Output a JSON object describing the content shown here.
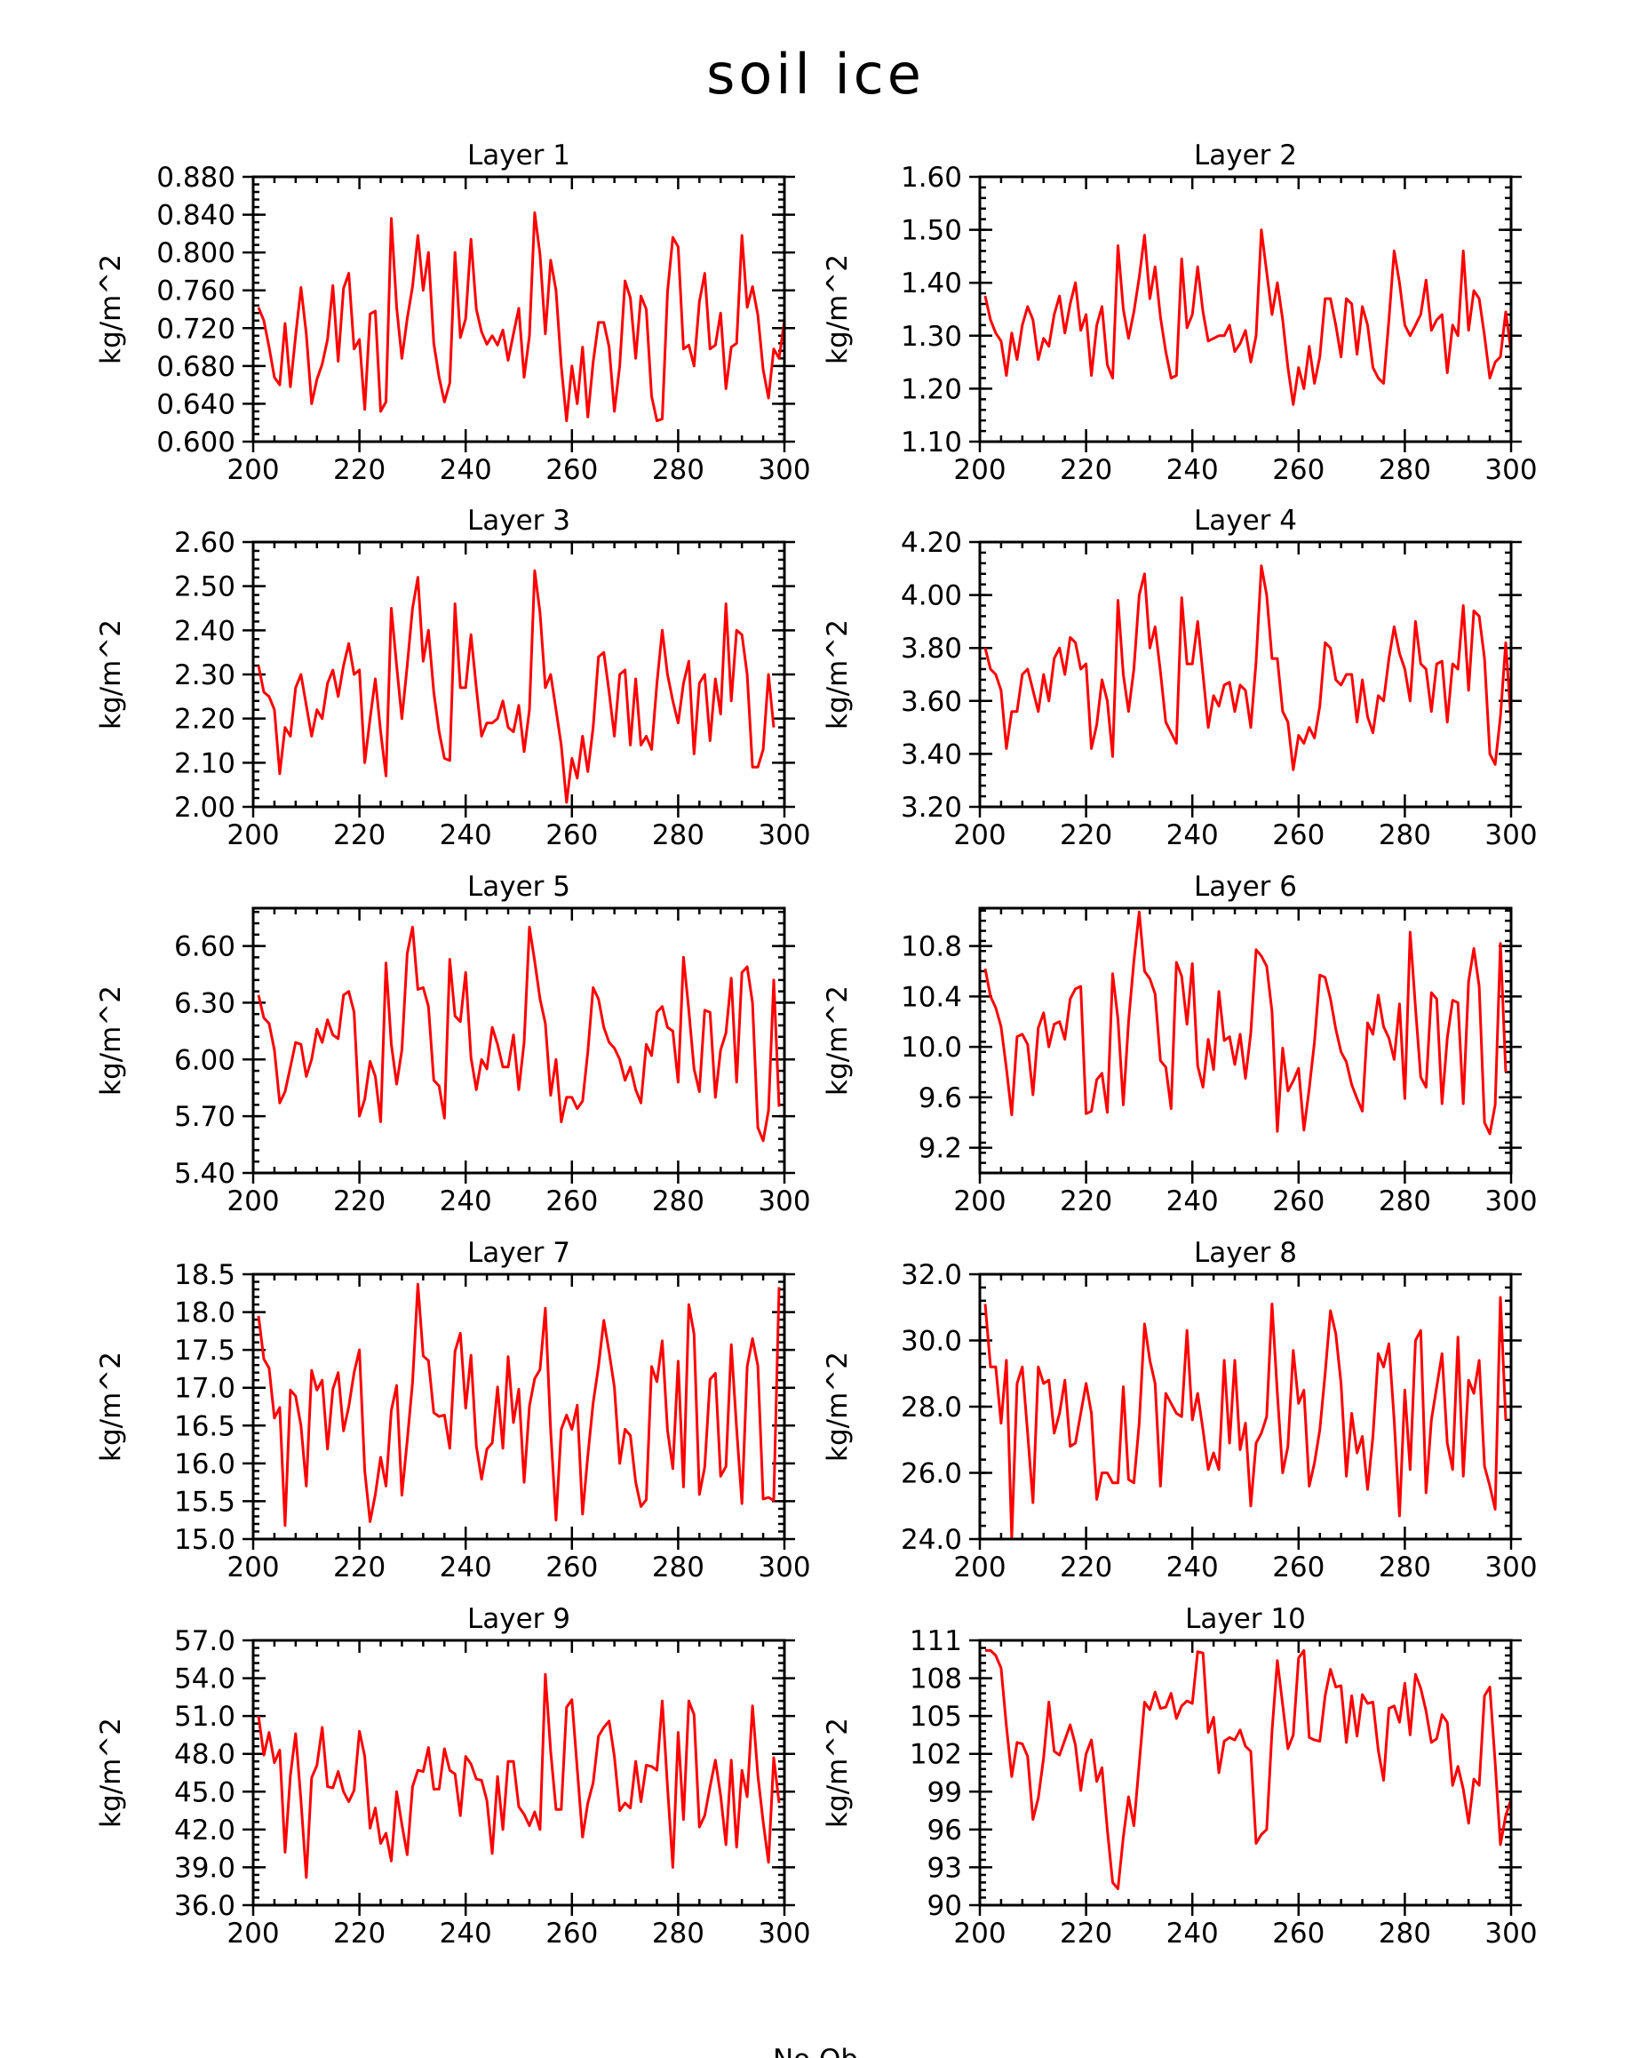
{
  "figure": {
    "title": "soil ice",
    "bottom_label": "No Ob",
    "line_color": "#ff0000"
  },
  "chart_data": [
    {
      "type": "line",
      "title": "Layer 1",
      "xlabel": "",
      "ylabel": "kg/m^2",
      "xlim": [
        200,
        300
      ],
      "ylim": [
        0.6,
        0.88
      ],
      "xticks": [
        "200",
        "220",
        "240",
        "260",
        "280",
        "300"
      ],
      "yticks": [
        "0.600",
        "0.640",
        "0.680",
        "0.720",
        "0.760",
        "0.800",
        "0.840",
        "0.880"
      ],
      "x_start": 201,
      "values": [
        0.742,
        0.728,
        0.7,
        0.668,
        0.66,
        0.725,
        0.658,
        0.712,
        0.763,
        0.714,
        0.64,
        0.666,
        0.682,
        0.708,
        0.765,
        0.685,
        0.762,
        0.778,
        0.698,
        0.708,
        0.634,
        0.735,
        0.738,
        0.632,
        0.642,
        0.836,
        0.742,
        0.688,
        0.73,
        0.764,
        0.818,
        0.76,
        0.8,
        0.704,
        0.668,
        0.642,
        0.662,
        0.8,
        0.71,
        0.73,
        0.814,
        0.74,
        0.716,
        0.703,
        0.712,
        0.702,
        0.718,
        0.686,
        0.714,
        0.741,
        0.668,
        0.712,
        0.842,
        0.798,
        0.714,
        0.792,
        0.76,
        0.68,
        0.622,
        0.68,
        0.64,
        0.7,
        0.626,
        0.684,
        0.726,
        0.726,
        0.7,
        0.632,
        0.68,
        0.77,
        0.752,
        0.688,
        0.754,
        0.74,
        0.648,
        0.622,
        0.624,
        0.758,
        0.816,
        0.806,
        0.698,
        0.702,
        0.68,
        0.748,
        0.778,
        0.698,
        0.702,
        0.736,
        0.656,
        0.7,
        0.704,
        0.818,
        0.742,
        0.764,
        0.734,
        0.676,
        0.646,
        0.698,
        0.688,
        0.728,
        0.668
      ]
    },
    {
      "type": "line",
      "title": "Layer 2",
      "xlabel": "",
      "ylabel": "kg/m^2",
      "xlim": [
        200,
        300
      ],
      "ylim": [
        1.1,
        1.6
      ],
      "xticks": [
        "200",
        "220",
        "240",
        "260",
        "280",
        "300"
      ],
      "yticks": [
        "1.10",
        "1.20",
        "1.30",
        "1.40",
        "1.50",
        "1.60"
      ],
      "x_start": 201,
      "values": [
        1.375,
        1.33,
        1.305,
        1.29,
        1.225,
        1.305,
        1.255,
        1.32,
        1.355,
        1.33,
        1.255,
        1.295,
        1.28,
        1.34,
        1.375,
        1.305,
        1.36,
        1.4,
        1.31,
        1.34,
        1.225,
        1.32,
        1.355,
        1.245,
        1.22,
        1.47,
        1.35,
        1.295,
        1.345,
        1.41,
        1.49,
        1.37,
        1.43,
        1.335,
        1.27,
        1.22,
        1.225,
        1.445,
        1.315,
        1.34,
        1.43,
        1.345,
        1.29,
        1.295,
        1.3,
        1.3,
        1.32,
        1.27,
        1.285,
        1.31,
        1.25,
        1.3,
        1.5,
        1.42,
        1.34,
        1.4,
        1.33,
        1.24,
        1.17,
        1.24,
        1.2,
        1.28,
        1.21,
        1.26,
        1.37,
        1.37,
        1.32,
        1.26,
        1.37,
        1.36,
        1.265,
        1.355,
        1.32,
        1.24,
        1.22,
        1.21,
        1.33,
        1.46,
        1.4,
        1.32,
        1.3,
        1.32,
        1.34,
        1.405,
        1.31,
        1.33,
        1.34,
        1.23,
        1.32,
        1.3,
        1.46,
        1.31,
        1.385,
        1.37,
        1.3,
        1.22,
        1.25,
        1.26,
        1.345,
        1.27,
        1.32
      ]
    },
    {
      "type": "line",
      "title": "Layer 3",
      "xlabel": "",
      "ylabel": "kg/m^2",
      "xlim": [
        200,
        300
      ],
      "ylim": [
        2.0,
        2.6
      ],
      "xticks": [
        "200",
        "220",
        "240",
        "260",
        "280",
        "300"
      ],
      "yticks": [
        "2.00",
        "2.10",
        "2.20",
        "2.30",
        "2.40",
        "2.50",
        "2.60"
      ],
      "x_start": 201,
      "values": [
        2.32,
        2.26,
        2.25,
        2.22,
        2.075,
        2.18,
        2.16,
        2.27,
        2.3,
        2.23,
        2.16,
        2.22,
        2.2,
        2.28,
        2.31,
        2.25,
        2.32,
        2.37,
        2.3,
        2.31,
        2.1,
        2.2,
        2.29,
        2.17,
        2.07,
        2.45,
        2.32,
        2.2,
        2.32,
        2.45,
        2.52,
        2.33,
        2.4,
        2.26,
        2.17,
        2.11,
        2.105,
        2.46,
        2.27,
        2.27,
        2.39,
        2.27,
        2.16,
        2.19,
        2.19,
        2.2,
        2.24,
        2.18,
        2.17,
        2.23,
        2.125,
        2.22,
        2.535,
        2.44,
        2.27,
        2.3,
        2.22,
        2.14,
        2.01,
        2.11,
        2.065,
        2.16,
        2.08,
        2.18,
        2.34,
        2.35,
        2.26,
        2.16,
        2.3,
        2.31,
        2.14,
        2.29,
        2.14,
        2.16,
        2.13,
        2.28,
        2.4,
        2.3,
        2.24,
        2.19,
        2.28,
        2.33,
        2.12,
        2.28,
        2.3,
        2.15,
        2.29,
        2.21,
        2.46,
        2.24,
        2.4,
        2.39,
        2.3,
        2.09,
        2.09,
        2.13,
        2.3,
        2.18
      ]
    },
    {
      "type": "line",
      "title": "Layer 4",
      "xlabel": "",
      "ylabel": "kg/m^2",
      "xlim": [
        200,
        300
      ],
      "ylim": [
        3.2,
        4.2
      ],
      "xticks": [
        "200",
        "220",
        "240",
        "260",
        "280",
        "300"
      ],
      "yticks": [
        "3.20",
        "3.40",
        "3.60",
        "3.80",
        "4.00",
        "4.20"
      ],
      "x_start": 201,
      "values": [
        3.8,
        3.72,
        3.7,
        3.64,
        3.42,
        3.56,
        3.56,
        3.7,
        3.72,
        3.64,
        3.56,
        3.7,
        3.6,
        3.76,
        3.8,
        3.7,
        3.84,
        3.82,
        3.72,
        3.74,
        3.42,
        3.51,
        3.68,
        3.6,
        3.39,
        3.98,
        3.7,
        3.56,
        3.72,
        4.0,
        4.08,
        3.8,
        3.88,
        3.71,
        3.52,
        3.48,
        3.44,
        3.99,
        3.74,
        3.74,
        3.9,
        3.7,
        3.5,
        3.62,
        3.58,
        3.66,
        3.67,
        3.56,
        3.66,
        3.64,
        3.5,
        3.75,
        4.11,
        4.0,
        3.76,
        3.76,
        3.56,
        3.52,
        3.34,
        3.47,
        3.44,
        3.5,
        3.46,
        3.58,
        3.82,
        3.8,
        3.68,
        3.66,
        3.7,
        3.7,
        3.52,
        3.68,
        3.54,
        3.48,
        3.62,
        3.6,
        3.76,
        3.88,
        3.78,
        3.72,
        3.6,
        3.9,
        3.74,
        3.72,
        3.56,
        3.74,
        3.75,
        3.52,
        3.74,
        3.72,
        3.96,
        3.64,
        3.94,
        3.92,
        3.76,
        3.4,
        3.36,
        3.54,
        3.82,
        3.52
      ]
    },
    {
      "type": "line",
      "title": "Layer 5",
      "xlabel": "",
      "ylabel": "kg/m^2",
      "xlim": [
        200,
        300
      ],
      "ylim": [
        5.4,
        6.8
      ],
      "xticks": [
        "200",
        "220",
        "240",
        "260",
        "280",
        "300"
      ],
      "yticks": [
        "5.40",
        "5.70",
        "6.00",
        "6.30",
        "6.60"
      ],
      "x_start": 201,
      "values": [
        6.34,
        6.22,
        6.19,
        6.05,
        5.77,
        5.83,
        5.96,
        6.09,
        6.08,
        5.91,
        6.0,
        6.16,
        6.09,
        6.21,
        6.13,
        6.11,
        6.34,
        6.36,
        6.25,
        5.7,
        5.79,
        5.99,
        5.91,
        5.67,
        6.51,
        6.08,
        5.87,
        6.05,
        6.56,
        6.7,
        6.37,
        6.38,
        6.28,
        5.89,
        5.86,
        5.69,
        6.53,
        6.23,
        6.2,
        6.46,
        6.01,
        5.84,
        6.0,
        5.95,
        6.17,
        6.08,
        5.96,
        5.96,
        6.13,
        5.84,
        6.09,
        6.7,
        6.52,
        6.32,
        6.19,
        5.81,
        6.0,
        5.67,
        5.8,
        5.8,
        5.74,
        5.78,
        6.04,
        6.38,
        6.32,
        6.17,
        6.09,
        6.06,
        6.0,
        5.89,
        5.96,
        5.84,
        5.77,
        6.08,
        6.02,
        6.25,
        6.28,
        6.17,
        6.15,
        5.88,
        6.54,
        6.26,
        5.95,
        5.83,
        6.26,
        6.25,
        5.8,
        6.05,
        6.14,
        6.43,
        5.88,
        6.46,
        6.49,
        6.3,
        5.64,
        5.57,
        5.73,
        6.42,
        5.75
      ]
    },
    {
      "type": "line",
      "title": "Layer 6",
      "xlabel": "",
      "ylabel": "kg/m^2",
      "xlim": [
        200,
        300
      ],
      "ylim": [
        9.0,
        11.1
      ],
      "xticks": [
        "200",
        "220",
        "240",
        "260",
        "280",
        "300"
      ],
      "yticks": [
        "9.2",
        "9.6",
        "10.0",
        "10.4",
        "10.8"
      ],
      "x_start": 201,
      "values": [
        10.62,
        10.4,
        10.31,
        10.16,
        9.83,
        9.46,
        10.08,
        10.1,
        10.02,
        9.62,
        10.15,
        10.27,
        10.0,
        10.18,
        10.2,
        10.06,
        10.38,
        10.46,
        10.48,
        9.47,
        9.49,
        9.74,
        9.79,
        9.48,
        10.58,
        10.22,
        9.54,
        10.2,
        10.68,
        11.07,
        10.6,
        10.54,
        10.42,
        9.89,
        9.84,
        9.51,
        10.67,
        10.56,
        10.18,
        10.66,
        9.85,
        9.68,
        10.06,
        9.82,
        10.44,
        10.05,
        10.08,
        9.86,
        10.1,
        9.75,
        10.11,
        10.77,
        10.72,
        10.64,
        10.28,
        9.33,
        9.99,
        9.65,
        9.73,
        9.83,
        9.34,
        9.67,
        10.04,
        10.57,
        10.55,
        10.38,
        10.14,
        9.96,
        9.88,
        9.7,
        9.59,
        9.49,
        10.19,
        10.1,
        10.41,
        10.16,
        10.07,
        9.9,
        10.34,
        9.59,
        10.91,
        10.31,
        9.76,
        9.68,
        10.43,
        10.38,
        9.55,
        10.07,
        10.37,
        10.35,
        9.55,
        10.52,
        10.78,
        10.48,
        9.4,
        9.31,
        9.54,
        10.82,
        9.8
      ]
    },
    {
      "type": "line",
      "title": "Layer 7",
      "xlabel": "",
      "ylabel": "kg/m^2",
      "xlim": [
        200,
        300
      ],
      "ylim": [
        15.0,
        18.5
      ],
      "xticks": [
        "200",
        "220",
        "240",
        "260",
        "280",
        "300"
      ],
      "yticks": [
        "15.0",
        "15.5",
        "16.0",
        "16.5",
        "17.0",
        "17.5",
        "18.0",
        "18.5"
      ],
      "x_start": 201,
      "values": [
        17.95,
        17.38,
        17.26,
        16.6,
        16.74,
        15.18,
        16.97,
        16.89,
        16.5,
        15.7,
        17.23,
        16.97,
        17.1,
        16.19,
        16.98,
        17.2,
        16.43,
        16.75,
        17.2,
        17.5,
        15.9,
        15.23,
        15.59,
        16.08,
        15.7,
        16.7,
        17.03,
        15.58,
        16.3,
        17.07,
        18.37,
        17.42,
        17.36,
        16.67,
        16.62,
        16.64,
        16.2,
        17.48,
        17.72,
        16.73,
        17.43,
        16.23,
        15.79,
        16.19,
        16.27,
        17.01,
        16.2,
        17.41,
        16.54,
        16.98,
        15.75,
        16.76,
        17.12,
        17.24,
        18.05,
        16.43,
        15.25,
        16.45,
        16.64,
        16.45,
        16.77,
        15.33,
        16.1,
        16.8,
        17.28,
        17.89,
        17.47,
        17.01,
        16.0,
        16.45,
        16.37,
        15.75,
        15.43,
        15.52,
        17.28,
        17.08,
        17.62,
        16.44,
        15.93,
        17.35,
        15.69,
        18.1,
        17.71,
        15.59,
        15.95,
        17.11,
        17.19,
        15.83,
        15.96,
        17.57,
        16.46,
        15.47,
        17.28,
        17.65,
        17.29,
        15.53,
        15.55,
        15.51,
        18.33
      ]
    },
    {
      "type": "line",
      "title": "Layer 8",
      "xlabel": "",
      "ylabel": "kg/m^2",
      "xlim": [
        200,
        300
      ],
      "ylim": [
        24.0,
        32.0
      ],
      "xticks": [
        "200",
        "220",
        "240",
        "260",
        "280",
        "300"
      ],
      "yticks": [
        "24.0",
        "26.0",
        "28.0",
        "30.0",
        "32.0"
      ],
      "x_start": 201,
      "values": [
        31.1,
        29.2,
        29.2,
        27.5,
        29.4,
        24.0,
        28.7,
        29.2,
        27.2,
        25.1,
        29.2,
        28.7,
        28.8,
        27.2,
        27.8,
        28.8,
        26.8,
        26.9,
        27.8,
        28.7,
        27.8,
        25.2,
        26.0,
        26.0,
        25.7,
        25.7,
        28.6,
        25.8,
        25.7,
        27.5,
        30.5,
        29.4,
        28.7,
        25.6,
        28.4,
        28.1,
        27.8,
        27.7,
        30.3,
        27.6,
        28.4,
        27.3,
        26.1,
        26.6,
        26.1,
        29.4,
        26.9,
        29.4,
        26.7,
        27.5,
        25.0,
        26.9,
        27.2,
        27.7,
        31.1,
        28.4,
        26.0,
        26.8,
        29.7,
        28.1,
        28.5,
        25.6,
        26.3,
        27.3,
        29.0,
        30.9,
        30.2,
        28.7,
        25.9,
        27.8,
        26.6,
        27.1,
        25.5,
        27.1,
        29.6,
        29.2,
        29.9,
        27.6,
        24.7,
        28.5,
        26.1,
        30.0,
        30.3,
        25.4,
        27.6,
        28.6,
        29.6,
        26.9,
        26.1,
        30.1,
        25.9,
        28.8,
        28.4,
        29.4,
        26.2,
        25.6,
        24.9,
        31.3,
        27.6
      ]
    },
    {
      "type": "line",
      "title": "Layer 9",
      "xlabel": "",
      "ylabel": "kg/m^2",
      "xlim": [
        200,
        300
      ],
      "ylim": [
        36.0,
        57.0
      ],
      "xticks": [
        "200",
        "220",
        "240",
        "260",
        "280",
        "300"
      ],
      "yticks": [
        "36.0",
        "39.0",
        "42.0",
        "45.0",
        "48.0",
        "51.0",
        "54.0",
        "57.0"
      ],
      "x_start": 201,
      "values": [
        51.0,
        47.9,
        49.7,
        47.3,
        48.3,
        40.2,
        46.3,
        49.6,
        44.3,
        38.2,
        46.1,
        47.1,
        50.1,
        45.4,
        45.3,
        46.6,
        45.0,
        44.2,
        45.1,
        49.8,
        47.8,
        42.1,
        43.7,
        40.9,
        41.7,
        39.5,
        45.0,
        42.4,
        40.0,
        45.4,
        46.7,
        46.6,
        48.5,
        45.2,
        45.2,
        48.4,
        46.7,
        46.4,
        43.1,
        47.8,
        47.2,
        46.0,
        45.9,
        44.3,
        40.1,
        46.2,
        42.0,
        47.4,
        47.4,
        43.8,
        43.2,
        42.3,
        43.4,
        42.0,
        54.3,
        48.2,
        43.6,
        43.6,
        51.7,
        52.3,
        46.8,
        41.4,
        44.1,
        45.7,
        49.4,
        50.1,
        50.6,
        47.8,
        43.5,
        44.1,
        43.7,
        47.4,
        44.2,
        47.1,
        47.0,
        46.7,
        52.2,
        45.4,
        39.0,
        49.7,
        42.8,
        52.2,
        51.1,
        42.2,
        43.1,
        45.4,
        47.5,
        44.7,
        40.8,
        47.5,
        40.6,
        46.7,
        44.6,
        51.8,
        46.3,
        42.6,
        39.4,
        47.7,
        44.1
      ]
    },
    {
      "type": "line",
      "title": "Layer 10",
      "xlabel": "",
      "ylabel": "kg/m^2",
      "xlim": [
        200,
        300
      ],
      "ylim": [
        90,
        111
      ],
      "xticks": [
        "200",
        "220",
        "240",
        "260",
        "280",
        "300"
      ],
      "yticks": [
        "90",
        "93",
        "96",
        "99",
        "102",
        "105",
        "108",
        "111"
      ],
      "x_start": 201,
      "values": [
        110.2,
        110.2,
        109.8,
        108.8,
        104.2,
        100.2,
        102.9,
        102.8,
        101.8,
        96.8,
        98.5,
        101.7,
        106.1,
        102.2,
        101.9,
        103.1,
        104.3,
        102.7,
        99.1,
        102.0,
        103.1,
        99.8,
        100.9,
        96.0,
        91.8,
        91.3,
        95.4,
        98.6,
        96.3,
        101.2,
        106.1,
        105.5,
        106.9,
        105.6,
        105.7,
        106.8,
        104.8,
        105.8,
        106.2,
        106.0,
        110.1,
        110.0,
        103.7,
        104.9,
        100.5,
        103.0,
        103.3,
        103.1,
        103.9,
        102.6,
        102.2,
        94.9,
        95.6,
        96.0,
        103.8,
        109.4,
        105.9,
        102.4,
        103.5,
        109.6,
        110.2,
        103.3,
        103.1,
        103.0,
        106.6,
        108.7,
        107.3,
        107.4,
        102.9,
        106.6,
        103.4,
        106.7,
        106.0,
        106.1,
        102.3,
        99.9,
        105.6,
        105.8,
        104.5,
        107.6,
        103.5,
        108.3,
        107.2,
        105.4,
        102.9,
        103.2,
        105.1,
        104.5,
        99.5,
        101.0,
        99.2,
        96.5,
        100.0,
        99.5,
        106.6,
        107.3,
        101.3,
        94.8,
        97.1,
        98.4
      ]
    }
  ]
}
